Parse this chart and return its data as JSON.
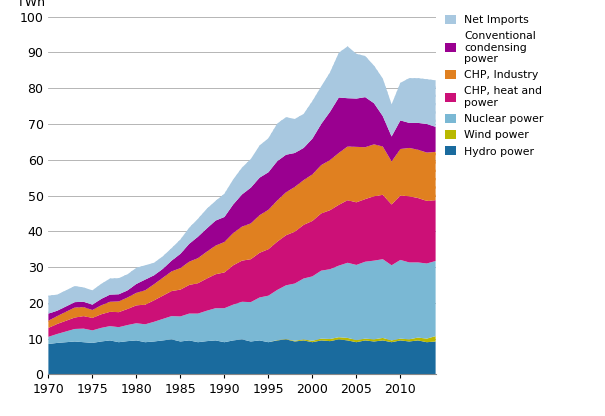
{
  "years": [
    1970,
    1971,
    1972,
    1973,
    1974,
    1975,
    1976,
    1977,
    1978,
    1979,
    1980,
    1981,
    1982,
    1983,
    1984,
    1985,
    1986,
    1987,
    1988,
    1989,
    1990,
    1991,
    1992,
    1993,
    1994,
    1995,
    1996,
    1997,
    1998,
    1999,
    2000,
    2001,
    2002,
    2003,
    2004,
    2005,
    2006,
    2007,
    2008,
    2009,
    2010,
    2011,
    2012,
    2013,
    2014
  ],
  "hydro": [
    8.5,
    8.8,
    9.0,
    9.2,
    9.0,
    8.8,
    9.2,
    9.5,
    9.0,
    9.3,
    9.5,
    9.0,
    9.2,
    9.5,
    9.8,
    9.2,
    9.5,
    9.0,
    9.3,
    9.5,
    9.0,
    9.5,
    9.8,
    9.2,
    9.5,
    9.0,
    9.5,
    9.8,
    9.2,
    9.5,
    9.0,
    9.5,
    9.3,
    9.8,
    9.5,
    9.0,
    9.5,
    9.2,
    9.5,
    9.0,
    9.5,
    9.2,
    9.5,
    9.0,
    9.2
  ],
  "wind": [
    0.0,
    0.0,
    0.0,
    0.0,
    0.0,
    0.0,
    0.0,
    0.0,
    0.0,
    0.0,
    0.0,
    0.0,
    0.0,
    0.0,
    0.0,
    0.0,
    0.0,
    0.0,
    0.0,
    0.0,
    0.0,
    0.0,
    0.0,
    0.0,
    0.0,
    0.0,
    0.1,
    0.1,
    0.2,
    0.3,
    0.4,
    0.5,
    0.6,
    0.6,
    0.7,
    0.6,
    0.5,
    0.6,
    0.7,
    0.5,
    0.5,
    0.6,
    0.8,
    1.0,
    1.5
  ],
  "nuclear": [
    2.0,
    2.5,
    3.0,
    3.5,
    3.8,
    3.5,
    3.8,
    4.0,
    4.2,
    4.5,
    4.8,
    5.0,
    5.5,
    6.0,
    6.5,
    7.0,
    7.5,
    8.0,
    8.5,
    9.0,
    9.5,
    10.0,
    10.5,
    11.0,
    12.0,
    13.0,
    14.0,
    15.0,
    16.0,
    17.0,
    18.0,
    19.0,
    19.5,
    20.0,
    21.0,
    21.0,
    21.5,
    22.0,
    22.0,
    21.0,
    22.0,
    21.5,
    21.0,
    21.0,
    21.0
  ],
  "chp_heat": [
    2.5,
    2.8,
    3.0,
    3.2,
    3.5,
    3.5,
    3.8,
    4.0,
    4.2,
    4.5,
    5.0,
    5.5,
    6.0,
    6.5,
    7.0,
    7.5,
    8.0,
    8.5,
    9.0,
    9.5,
    10.0,
    11.0,
    11.5,
    12.0,
    12.5,
    13.0,
    13.5,
    14.0,
    14.5,
    15.0,
    15.5,
    16.0,
    16.5,
    17.0,
    17.5,
    17.5,
    17.5,
    18.0,
    18.0,
    17.0,
    18.0,
    18.5,
    18.0,
    17.5,
    17.0
  ],
  "chp_industry": [
    2.0,
    2.2,
    2.5,
    2.8,
    2.5,
    2.2,
    2.5,
    2.8,
    3.0,
    3.2,
    3.5,
    4.0,
    4.5,
    5.0,
    5.5,
    6.0,
    6.5,
    7.0,
    7.5,
    8.0,
    8.5,
    9.0,
    9.5,
    10.0,
    10.5,
    11.0,
    11.5,
    12.0,
    12.5,
    12.5,
    13.0,
    13.5,
    14.0,
    14.5,
    15.0,
    15.5,
    14.5,
    14.5,
    13.5,
    12.0,
    13.0,
    13.5,
    13.5,
    13.5,
    13.5
  ],
  "condensing": [
    2.0,
    1.5,
    1.5,
    1.5,
    1.5,
    1.5,
    1.8,
    2.0,
    2.0,
    2.0,
    2.5,
    3.0,
    2.5,
    2.5,
    3.0,
    4.0,
    5.0,
    6.0,
    6.5,
    7.0,
    7.0,
    8.0,
    9.0,
    10.0,
    10.5,
    10.5,
    11.0,
    10.5,
    9.5,
    9.0,
    10.0,
    11.5,
    13.5,
    15.5,
    13.5,
    13.5,
    14.0,
    11.5,
    8.5,
    7.0,
    8.0,
    7.0,
    7.5,
    8.0,
    7.0
  ],
  "net_imports": [
    5.0,
    4.5,
    4.5,
    4.5,
    4.0,
    4.0,
    4.2,
    4.5,
    4.5,
    4.5,
    4.5,
    4.0,
    3.5,
    3.5,
    3.5,
    4.0,
    4.5,
    5.0,
    5.5,
    5.5,
    6.5,
    7.0,
    7.5,
    8.0,
    9.0,
    9.5,
    10.5,
    10.5,
    9.5,
    9.5,
    10.5,
    10.5,
    11.0,
    12.5,
    14.5,
    12.5,
    11.5,
    10.5,
    10.5,
    9.0,
    10.5,
    12.5,
    12.5,
    12.5,
    13.0
  ],
  "colors": {
    "hydro": "#1a6b9e",
    "wind": "#b8b800",
    "nuclear": "#7ab8d4",
    "chp_heat": "#cc1077",
    "chp_industry": "#e08020",
    "condensing": "#9a0090",
    "net_imports": "#a8c8e0"
  },
  "ylabel": "TWh",
  "ylim": [
    0,
    100
  ],
  "xlim": [
    1970,
    2014
  ],
  "yticks": [
    0,
    10,
    20,
    30,
    40,
    50,
    60,
    70,
    80,
    90,
    100
  ],
  "xticks": [
    1970,
    1975,
    1980,
    1985,
    1990,
    1995,
    2000,
    2005,
    2010
  ],
  "legend_labels": [
    "Net Imports",
    "Conventional\ncondensing\npower",
    "CHP, Industry",
    "CHP, heat and\npower",
    "Nuclear power",
    "Wind power",
    "Hydro power"
  ]
}
